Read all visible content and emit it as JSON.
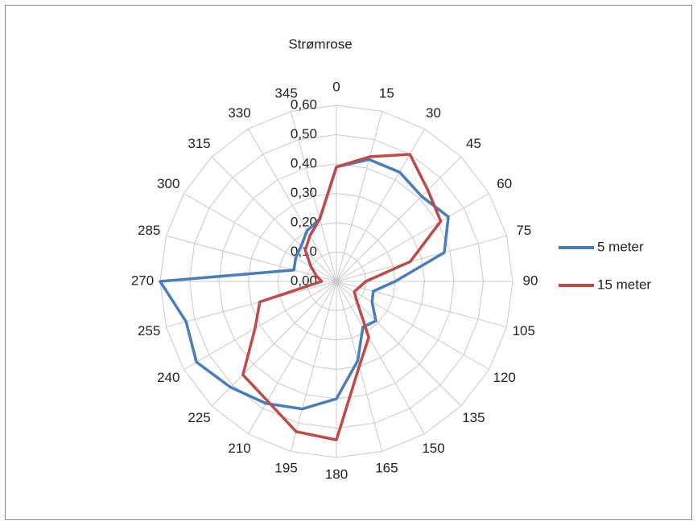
{
  "chart_data": {
    "type": "radar",
    "title": "Strømrose",
    "categories": [
      "0",
      "15",
      "30",
      "45",
      "60",
      "75",
      "90",
      "105",
      "120",
      "135",
      "150",
      "165",
      "180",
      "195",
      "210",
      "225",
      "240",
      "255",
      "270",
      "285",
      "300",
      "315",
      "330",
      "345"
    ],
    "series": [
      {
        "name": "5 meter",
        "color": "#4a7ebb",
        "values": [
          0.39,
          0.43,
          0.43,
          0.41,
          0.44,
          0.38,
          0.2,
          0.13,
          0.14,
          0.19,
          0.18,
          0.28,
          0.4,
          0.45,
          0.48,
          0.51,
          0.55,
          0.53,
          0.6,
          0.15,
          0.16,
          0.17,
          0.2,
          0.22
        ]
      },
      {
        "name": "15 meter",
        "color": "#be4b48",
        "values": [
          0.39,
          0.44,
          0.5,
          0.44,
          0.41,
          0.26,
          0.1,
          0.08,
          0.07,
          0.1,
          0.22,
          0.3,
          0.54,
          0.53,
          0.47,
          0.45,
          0.32,
          0.27,
          0.05,
          0.07,
          0.1,
          0.15,
          0.18,
          0.22
        ]
      }
    ],
    "ylim": [
      0,
      0.6
    ],
    "yticks": [
      {
        "value": 0,
        "label": "0,00"
      },
      {
        "value": 0.1,
        "label": "0,10"
      },
      {
        "value": 0.2,
        "label": "0,20"
      },
      {
        "value": 0.3,
        "label": "0,30"
      },
      {
        "value": 0.4,
        "label": "0,40"
      },
      {
        "value": 0.5,
        "label": "0,50"
      },
      {
        "value": 0.6,
        "label": "0,60"
      }
    ],
    "grid": true,
    "legend": "right"
  }
}
